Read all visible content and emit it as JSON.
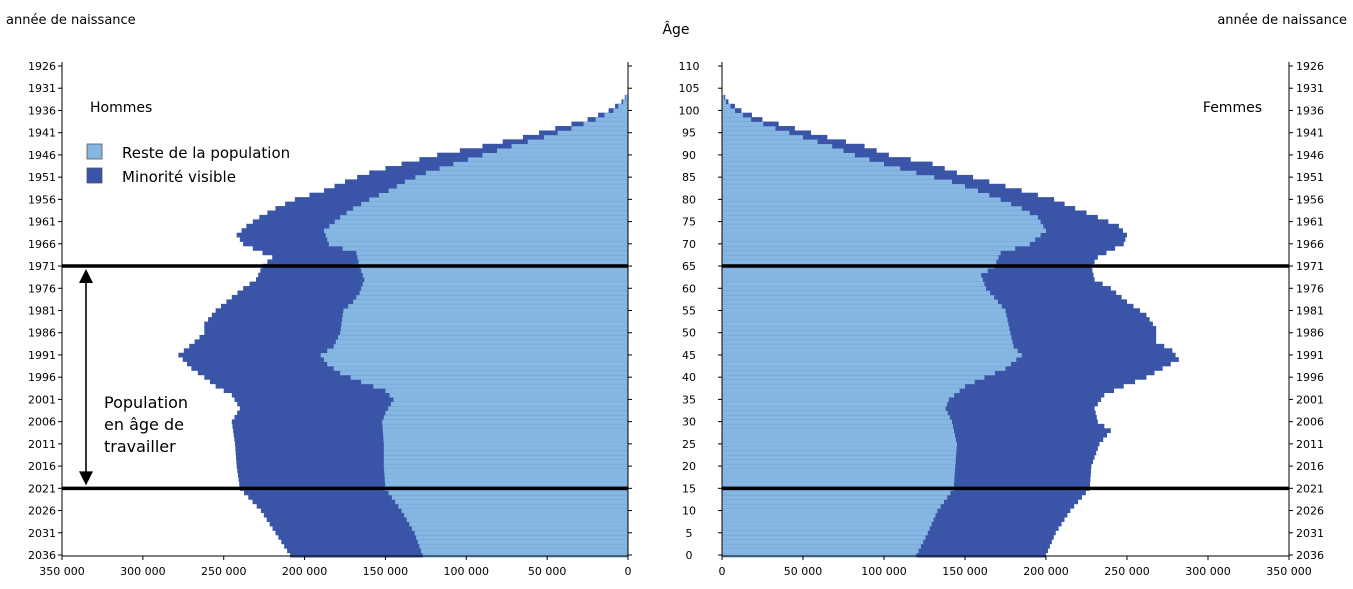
{
  "header": {
    "left_axis_title": "année de naissance",
    "right_axis_title": "année de naissance",
    "center_axis_title": "Âge"
  },
  "annotation": {
    "lines": [
      "Population",
      "en âge de",
      "travailler"
    ],
    "age_range": [
      15,
      65
    ]
  },
  "colors": {
    "rest": "#86b7e3",
    "minority": "#3a55a8",
    "axis": "#000000",
    "line": "#000000"
  },
  "chart_data": {
    "type": "bar",
    "orientation": "horizontal",
    "title": "",
    "panels": [
      {
        "name": "Hommes",
        "side": "left"
      },
      {
        "name": "Femmes",
        "side": "right"
      }
    ],
    "x_ticks": [
      0,
      50000,
      100000,
      150000,
      200000,
      250000,
      300000,
      350000
    ],
    "x_tick_labels": [
      "0",
      "50 000",
      "100 000",
      "150 000",
      "200 000",
      "250 000",
      "300 000",
      "350 000"
    ],
    "xlim": [
      0,
      350000
    ],
    "age_ticks": [
      0,
      5,
      10,
      15,
      20,
      25,
      30,
      35,
      40,
      45,
      50,
      55,
      60,
      65,
      70,
      75,
      80,
      85,
      90,
      95,
      100,
      105,
      110
    ],
    "birth_year_ticks": [
      "2036",
      "2031",
      "2026",
      "2021",
      "2016",
      "2011",
      "2006",
      "2001",
      "1996",
      "1991",
      "1986",
      "1981",
      "1976",
      "1971",
      "1966",
      "1961",
      "1956",
      "1951",
      "1946",
      "1941",
      "1936",
      "1931",
      "1926"
    ],
    "ylim": [
      0,
      110
    ],
    "legend": {
      "position": "top-left",
      "items": [
        {
          "name": "Reste de la population",
          "color": "#86b7e3"
        },
        {
          "name": "Minorité visible",
          "color": "#3a55a8"
        }
      ]
    },
    "series": [
      {
        "name": "Hommes",
        "total_keypoints": [
          [
            0,
            209000
          ],
          [
            5,
            218000
          ],
          [
            10,
            227000
          ],
          [
            15,
            240000
          ],
          [
            20,
            242000
          ],
          [
            25,
            243000
          ],
          [
            30,
            245000
          ],
          [
            33,
            240000
          ],
          [
            36,
            245000
          ],
          [
            38,
            255000
          ],
          [
            40,
            262000
          ],
          [
            42,
            270000
          ],
          [
            45,
            278000
          ],
          [
            48,
            268000
          ],
          [
            50,
            262000
          ],
          [
            52,
            262000
          ],
          [
            55,
            255000
          ],
          [
            58,
            245000
          ],
          [
            60,
            238000
          ],
          [
            62,
            230000
          ],
          [
            65,
            226000
          ],
          [
            67,
            220000
          ],
          [
            70,
            238000
          ],
          [
            72,
            242000
          ],
          [
            74,
            236000
          ],
          [
            76,
            228000
          ],
          [
            78,
            218000
          ],
          [
            80,
            206000
          ],
          [
            82,
            188000
          ],
          [
            84,
            175000
          ],
          [
            86,
            160000
          ],
          [
            88,
            140000
          ],
          [
            90,
            118000
          ],
          [
            92,
            90000
          ],
          [
            94,
            65000
          ],
          [
            96,
            45000
          ],
          [
            98,
            25000
          ],
          [
            100,
            12000
          ],
          [
            102,
            4000
          ],
          [
            104,
            0
          ]
        ],
        "rest_keypoints": [
          [
            0,
            127000
          ],
          [
            5,
            132000
          ],
          [
            10,
            140000
          ],
          [
            15,
            150000
          ],
          [
            20,
            151000
          ],
          [
            25,
            151000
          ],
          [
            30,
            152000
          ],
          [
            32,
            150000
          ],
          [
            35,
            145000
          ],
          [
            37,
            150000
          ],
          [
            39,
            165000
          ],
          [
            41,
            178000
          ],
          [
            43,
            186000
          ],
          [
            45,
            190000
          ],
          [
            47,
            182000
          ],
          [
            50,
            178000
          ],
          [
            55,
            176000
          ],
          [
            57,
            170000
          ],
          [
            59,
            166000
          ],
          [
            62,
            163000
          ],
          [
            65,
            166000
          ],
          [
            68,
            168000
          ],
          [
            70,
            185000
          ],
          [
            73,
            188000
          ],
          [
            76,
            178000
          ],
          [
            78,
            170000
          ],
          [
            80,
            160000
          ],
          [
            82,
            148000
          ],
          [
            84,
            138000
          ],
          [
            86,
            125000
          ],
          [
            88,
            108000
          ],
          [
            90,
            90000
          ],
          [
            92,
            72000
          ],
          [
            94,
            52000
          ],
          [
            96,
            35000
          ],
          [
            98,
            20000
          ],
          [
            100,
            9000
          ],
          [
            102,
            3000
          ],
          [
            104,
            0
          ]
        ]
      },
      {
        "name": "Femmes",
        "total_keypoints": [
          [
            0,
            200000
          ],
          [
            5,
            206000
          ],
          [
            10,
            215000
          ],
          [
            15,
            227000
          ],
          [
            20,
            228000
          ],
          [
            25,
            233000
          ],
          [
            28,
            240000
          ],
          [
            30,
            232000
          ],
          [
            33,
            230000
          ],
          [
            36,
            236000
          ],
          [
            38,
            248000
          ],
          [
            40,
            262000
          ],
          [
            42,
            272000
          ],
          [
            44,
            282000
          ],
          [
            46,
            278000
          ],
          [
            48,
            268000
          ],
          [
            51,
            268000
          ],
          [
            54,
            262000
          ],
          [
            57,
            250000
          ],
          [
            60,
            240000
          ],
          [
            62,
            230000
          ],
          [
            65,
            228000
          ],
          [
            67,
            232000
          ],
          [
            70,
            248000
          ],
          [
            72,
            250000
          ],
          [
            74,
            245000
          ],
          [
            76,
            232000
          ],
          [
            78,
            218000
          ],
          [
            80,
            205000
          ],
          [
            82,
            185000
          ],
          [
            84,
            165000
          ],
          [
            86,
            145000
          ],
          [
            88,
            130000
          ],
          [
            90,
            103000
          ],
          [
            92,
            88000
          ],
          [
            94,
            65000
          ],
          [
            96,
            45000
          ],
          [
            98,
            25000
          ],
          [
            100,
            12000
          ],
          [
            102,
            4000
          ],
          [
            104,
            0
          ]
        ],
        "rest_keypoints": [
          [
            0,
            120000
          ],
          [
            5,
            127000
          ],
          [
            10,
            133000
          ],
          [
            15,
            143000
          ],
          [
            20,
            144000
          ],
          [
            25,
            145000
          ],
          [
            30,
            142000
          ],
          [
            33,
            138000
          ],
          [
            35,
            140000
          ],
          [
            38,
            150000
          ],
          [
            40,
            162000
          ],
          [
            42,
            175000
          ],
          [
            45,
            185000
          ],
          [
            47,
            180000
          ],
          [
            50,
            178000
          ],
          [
            55,
            175000
          ],
          [
            58,
            168000
          ],
          [
            60,
            163000
          ],
          [
            63,
            160000
          ],
          [
            65,
            168000
          ],
          [
            68,
            172000
          ],
          [
            70,
            190000
          ],
          [
            73,
            200000
          ],
          [
            76,
            195000
          ],
          [
            78,
            185000
          ],
          [
            80,
            172000
          ],
          [
            82,
            158000
          ],
          [
            84,
            142000
          ],
          [
            86,
            120000
          ],
          [
            88,
            100000
          ],
          [
            90,
            82000
          ],
          [
            92,
            68000
          ],
          [
            94,
            50000
          ],
          [
            96,
            33000
          ],
          [
            98,
            18000
          ],
          [
            100,
            8000
          ],
          [
            102,
            2500
          ],
          [
            104,
            0
          ]
        ]
      }
    ]
  }
}
